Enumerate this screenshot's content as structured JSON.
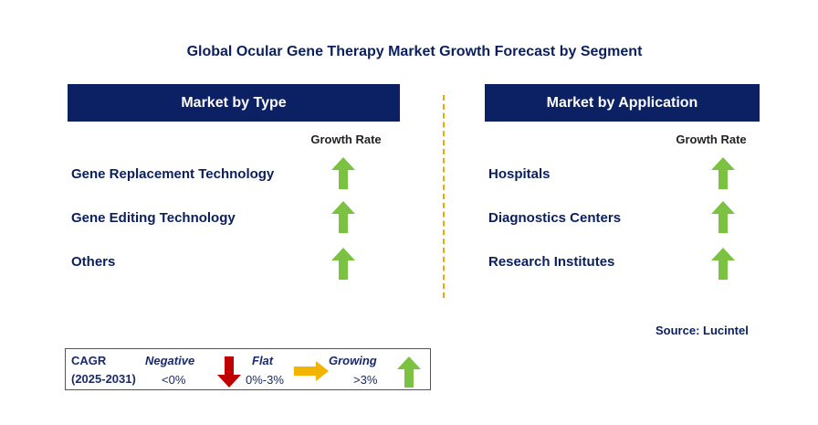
{
  "title": "Global Ocular Gene Therapy Market Growth Forecast by Segment",
  "colors": {
    "header_bg": "#0b2163",
    "up_arrow": "#7cc242",
    "down_arrow": "#c00000",
    "flat_arrow": "#f2b400",
    "divider": "#f0a800",
    "text_navy": "#0b1f5c"
  },
  "type_panel": {
    "header": "Market by Type",
    "growth_header": "Growth Rate",
    "rows": [
      {
        "label": "Gene Replacement Technology",
        "trend": "growing",
        "icon": "up-arrow-icon"
      },
      {
        "label": "Gene Editing Technology",
        "trend": "growing",
        "icon": "up-arrow-icon"
      },
      {
        "label": "Others",
        "trend": "growing",
        "icon": "up-arrow-icon"
      }
    ]
  },
  "application_panel": {
    "header": "Market by Application",
    "growth_header": "Growth Rate",
    "rows": [
      {
        "label": "Hospitals",
        "trend": "growing",
        "icon": "up-arrow-icon"
      },
      {
        "label": "Diagnostics Centers",
        "trend": "growing",
        "icon": "up-arrow-icon"
      },
      {
        "label": "Research Institutes",
        "trend": "growing",
        "icon": "up-arrow-icon"
      }
    ]
  },
  "source": "Source: Lucintel",
  "legend": {
    "cagr_label": "CAGR",
    "period": "(2025-2031)",
    "negative_label": "Negative",
    "negative_range": "<0%",
    "flat_label": "Flat",
    "flat_range": "0%-3%",
    "growing_label": "Growing",
    "growing_range": ">3%"
  }
}
